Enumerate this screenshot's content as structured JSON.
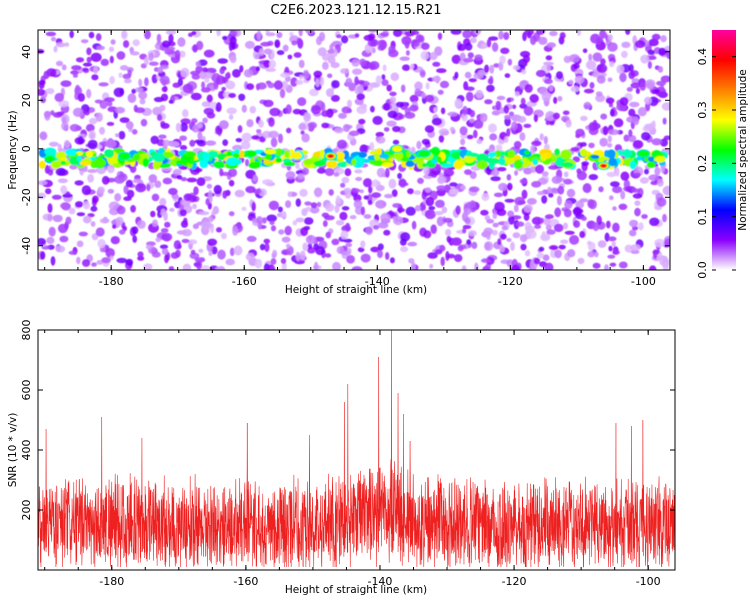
{
  "page": {
    "title": "C2E6.2023.121.12.15.R21"
  },
  "chart_data": [
    {
      "type": "heatmap",
      "title": "C2E6.2023.121.12.15.R21",
      "xlabel": "Height of straight line (km)",
      "ylabel": "Frequency (Hz)",
      "xlim": [
        -191,
        -96
      ],
      "ylim": [
        -50,
        49
      ],
      "xticks": [
        -180,
        -160,
        -140,
        -120,
        -100
      ],
      "yticks": [
        -40,
        -20,
        0,
        20,
        40
      ],
      "colorbar": {
        "label": "Normalized spectral amplitude",
        "range": [
          0,
          0.45
        ],
        "ticks": [
          "0.0",
          "0.1",
          "0.2",
          "0.3",
          "0.4"
        ],
        "colormap": [
          "#ffffff",
          "#8a00ff",
          "#0000ff",
          "#00ffff",
          "#00ff00",
          "#ffff00",
          "#ff8000",
          "#ff0000",
          "#ff00a0"
        ]
      },
      "band_center_hz": -4,
      "hotspots": [
        {
          "x": -147,
          "y": -3,
          "value": 0.42
        },
        {
          "x": -106,
          "y": -7,
          "value": 0.42
        },
        {
          "x": -137,
          "y": 0,
          "value": 0.28
        },
        {
          "x": -178,
          "y": -3,
          "value": 0.26
        },
        {
          "x": -133,
          "y": -2,
          "value": 0.25
        },
        {
          "x": -100,
          "y": -2,
          "value": 0.22
        }
      ]
    },
    {
      "type": "line",
      "xlabel": "Height of straight line (km)",
      "ylabel": "SNR (10 * v/v)",
      "xlim": [
        -191,
        -96
      ],
      "ylim": [
        0,
        800
      ],
      "xticks": [
        -180,
        -160,
        -140,
        -120,
        -100
      ],
      "yticks": [
        200,
        400,
        600,
        800
      ],
      "series": [
        {
          "color": "#ee2020",
          "baseline": 150,
          "peaks": [
            {
              "x": -138.3,
              "y": 800
            },
            {
              "x": -140.2,
              "y": 710
            },
            {
              "x": -144.8,
              "y": 620
            },
            {
              "x": -145.3,
              "y": 560
            },
            {
              "x": -137.3,
              "y": 590
            },
            {
              "x": -136.5,
              "y": 520
            },
            {
              "x": -181.5,
              "y": 510
            },
            {
              "x": -100.8,
              "y": 500
            },
            {
              "x": -104.8,
              "y": 490
            },
            {
              "x": -159.8,
              "y": 490
            },
            {
              "x": -102.5,
              "y": 480
            },
            {
              "x": -189.8,
              "y": 470
            },
            {
              "x": -135.5,
              "y": 430
            },
            {
              "x": -175.5,
              "y": 440
            },
            {
              "x": -150.5,
              "y": 450
            }
          ]
        }
      ]
    }
  ]
}
